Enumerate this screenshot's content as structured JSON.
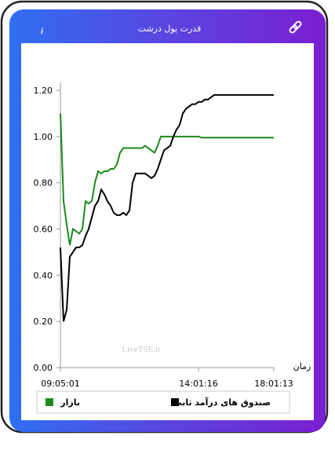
{
  "header": {
    "title": "قدرت پول درشت",
    "info": "i"
  },
  "chart_data": {
    "type": "line",
    "watermark": "LiveTSE.ir",
    "x_label": "زمان",
    "categories": [
      "09:05:01",
      null,
      null,
      null,
      null,
      null,
      null,
      null,
      null,
      null,
      null,
      null,
      null,
      null,
      null,
      null,
      null,
      null,
      null,
      null,
      null,
      null,
      null,
      null,
      null,
      null,
      null,
      null,
      null,
      null,
      null,
      null,
      null,
      null,
      null,
      null,
      null,
      null,
      null,
      null,
      null,
      null,
      null,
      null,
      "14:01:16",
      null,
      null,
      null,
      null,
      null,
      null,
      null,
      null,
      null,
      null,
      null,
      null,
      null,
      null,
      null,
      null,
      null,
      null,
      null,
      null,
      null,
      null,
      null,
      "18:01:13"
    ],
    "series": [
      {
        "name": "صندوق های درآمد ثابت",
        "color": "#000000",
        "values": [
          0.52,
          0.2,
          0.25,
          0.48,
          0.5,
          0.52,
          0.52,
          0.53,
          0.57,
          0.6,
          0.65,
          0.7,
          0.72,
          0.77,
          0.75,
          0.72,
          0.7,
          0.67,
          0.66,
          0.66,
          0.67,
          0.66,
          0.68,
          0.8,
          0.84,
          0.84,
          0.84,
          0.84,
          0.83,
          0.82,
          0.83,
          0.86,
          0.9,
          0.94,
          0.95,
          0.96,
          1.0,
          1.03,
          1.05,
          1.1,
          1.12,
          1.13,
          1.14,
          1.14,
          1.15,
          1.15,
          1.16,
          1.16,
          1.17,
          1.18,
          1.18,
          1.18,
          1.18,
          1.18,
          1.18,
          1.18,
          1.18,
          1.18,
          1.18,
          1.18,
          1.18,
          1.18,
          1.18,
          1.18,
          1.18,
          1.18,
          1.18,
          1.18,
          1.18
        ]
      },
      {
        "name": "بازار",
        "color": "#1a8a1a",
        "values": [
          1.1,
          0.72,
          0.62,
          0.53,
          0.6,
          0.59,
          0.58,
          0.6,
          0.72,
          0.71,
          0.72,
          0.8,
          0.85,
          0.84,
          0.85,
          0.85,
          0.86,
          0.86,
          0.88,
          0.93,
          0.95,
          0.95,
          0.95,
          0.95,
          0.95,
          0.95,
          0.95,
          0.96,
          0.95,
          0.94,
          0.93,
          0.96,
          1.0,
          1.0,
          1.0,
          1.0,
          1.0,
          1.0,
          1.0,
          1.0,
          1.0,
          1.0,
          1.0,
          1.0,
          1.0,
          0.995,
          0.995,
          0.995,
          0.995,
          0.995,
          0.995,
          0.995,
          0.995,
          0.995,
          0.995,
          0.995,
          0.995,
          0.995,
          0.995,
          0.995,
          0.995,
          0.995,
          0.995,
          0.995,
          0.995,
          0.995,
          0.995,
          0.995,
          0.995
        ]
      }
    ],
    "ylim": [
      0,
      1.2
    ],
    "yticks": [
      {
        "value": 0,
        "label": "0.00"
      },
      {
        "value": 0.2,
        "label": "0.20"
      },
      {
        "value": 0.4,
        "label": "0.40"
      },
      {
        "value": 0.6,
        "label": "0.60"
      },
      {
        "value": 0.8,
        "label": "0.80"
      },
      {
        "value": 1,
        "label": "1.00"
      },
      {
        "value": 1.2,
        "label": "1.20"
      }
    ],
    "grid": false
  }
}
